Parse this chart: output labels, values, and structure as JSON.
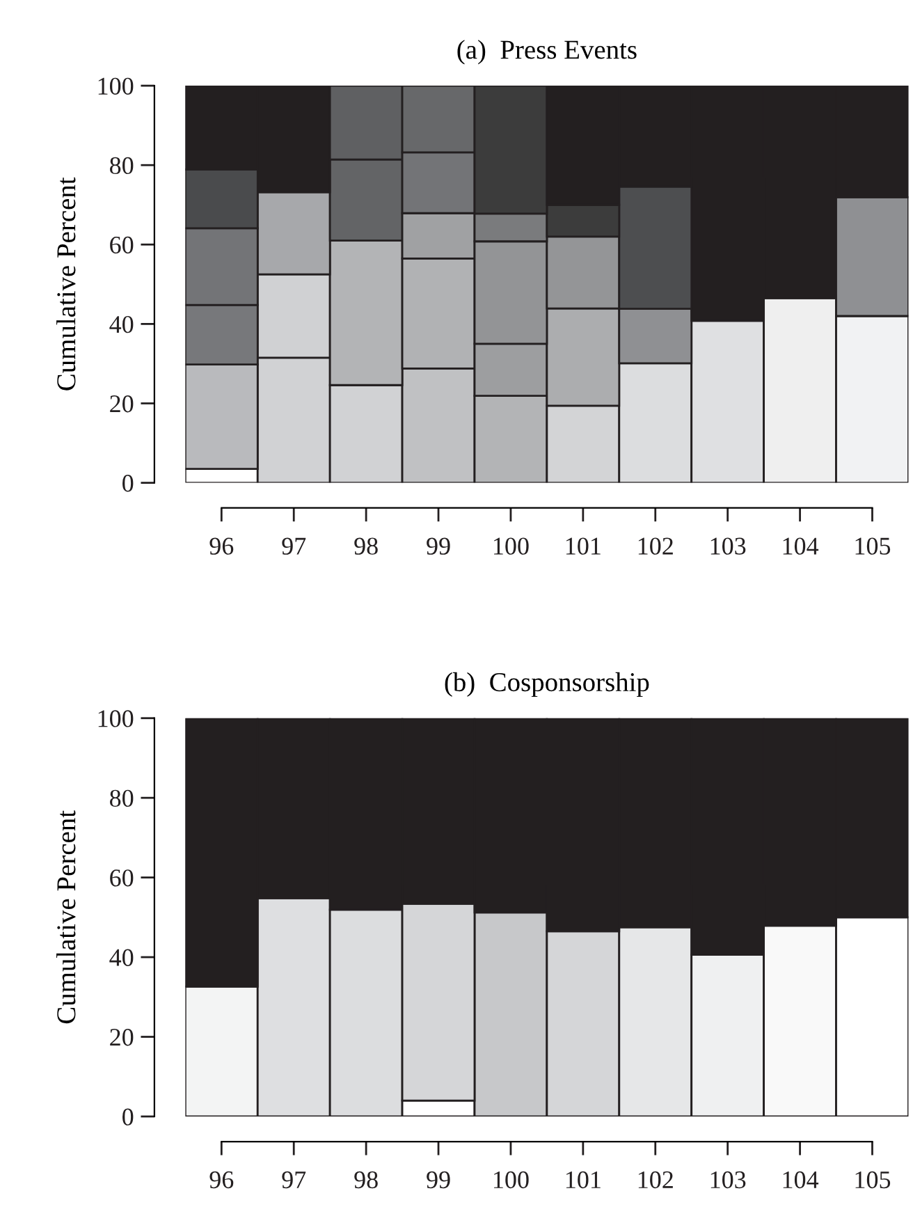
{
  "chart_data": [
    {
      "type": "bar",
      "stacked": true,
      "title": "(a)  Press Events",
      "ylabel": "Cumulative Percent",
      "categories": [
        "96",
        "97",
        "98",
        "99",
        "100",
        "101",
        "102",
        "103",
        "104",
        "105"
      ],
      "ylim": [
        0,
        100
      ],
      "yticks": [
        0,
        20,
        40,
        60,
        80,
        100
      ],
      "grid": false,
      "legend": false,
      "series": [
        {
          "values": [
            3.5,
            31.5,
            24.6,
            28.8,
            21.9,
            19.4,
            30.1,
            40.8,
            46.5,
            42.0
          ],
          "colors": [
            "#ffffff",
            "#d1d2d4",
            "#d1d2d4",
            "#c0c1c3",
            "#b3b4b6",
            "#d3d4d6",
            "#dcdddf",
            "#dfe0e2",
            "#efefef",
            "#f1f2f3"
          ]
        },
        {
          "values": [
            26.3,
            21.0,
            36.4,
            27.7,
            13.1,
            24.5,
            13.7,
            59.2,
            53.5,
            29.9
          ],
          "colors": [
            "#b9babd",
            "#d0d1d3",
            "#b3b4b6",
            "#b1b2b4",
            "#9d9ea0",
            "#acadaf",
            "#8f9093",
            "#231f20",
            "#231f20",
            "#8f9093"
          ]
        },
        {
          "values": [
            15.0,
            20.7,
            20.4,
            11.4,
            25.8,
            18.1,
            30.8,
            null,
            null,
            28.1
          ],
          "colors": [
            "#77787b",
            "#a7a8ab",
            "#636466",
            "#a0a1a3",
            "#939496",
            "#949597",
            "#4d4e50",
            null,
            null,
            "#231f20"
          ]
        },
        {
          "values": [
            19.3,
            26.8,
            18.6,
            15.3,
            7.0,
            8.0,
            25.4,
            null,
            null,
            null
          ],
          "colors": [
            "#737477",
            "#231f20",
            "#5f6062",
            "#737477",
            "#7a7b7d",
            "#3c3c3c",
            "#231f20",
            null,
            null,
            null
          ]
        },
        {
          "values": [
            14.8,
            null,
            null,
            16.8,
            32.2,
            30.0,
            null,
            null,
            null,
            null
          ],
          "colors": [
            "#4a4b4d",
            null,
            null,
            "#67686a",
            "#3c3c3c",
            "#231f20",
            null,
            null,
            null,
            null
          ]
        },
        {
          "values": [
            21.1,
            null,
            null,
            null,
            null,
            null,
            null,
            null,
            null,
            null
          ],
          "colors": [
            "#231f20",
            null,
            null,
            null,
            null,
            null,
            null,
            null,
            null,
            null
          ]
        }
      ]
    },
    {
      "type": "bar",
      "stacked": true,
      "title": "(b)  Cosponsorship",
      "ylabel": "Cumulative Percent",
      "categories": [
        "96",
        "97",
        "98",
        "99",
        "100",
        "101",
        "102",
        "103",
        "104",
        "105"
      ],
      "ylim": [
        0,
        100
      ],
      "yticks": [
        0,
        20,
        40,
        60,
        80,
        100
      ],
      "grid": false,
      "legend": false,
      "series": [
        {
          "values": [
            32.6,
            54.8,
            51.9,
            4.0,
            51.2,
            46.5,
            47.5,
            40.6,
            47.9,
            50.0
          ],
          "colors": [
            "#f3f4f4",
            "#dedfe1",
            "#dcdddf",
            "#ffffff",
            "#c7c8ca",
            "#d5d6d8",
            "#e6e7e8",
            "#eff0f1",
            "#f9f9f9",
            "#ffffff"
          ]
        },
        {
          "values": [
            67.4,
            45.2,
            48.1,
            49.4,
            48.8,
            53.5,
            52.5,
            59.4,
            52.1,
            50.0
          ],
          "colors": [
            "#231f20",
            "#231f20",
            "#231f20",
            "#d5d6d8",
            "#231f20",
            "#231f20",
            "#231f20",
            "#231f20",
            "#231f20",
            "#231f20"
          ]
        },
        {
          "values": [
            null,
            null,
            null,
            46.6,
            null,
            null,
            null,
            null,
            null,
            null
          ],
          "colors": [
            null,
            null,
            null,
            "#231f20",
            null,
            null,
            null,
            null,
            null,
            null
          ]
        }
      ]
    }
  ]
}
